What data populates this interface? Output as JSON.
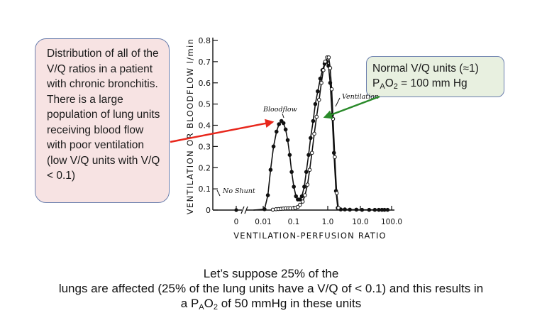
{
  "callout_left": {
    "text": "Distribution of all of the V/Q ratios in a patient with chronic bronchitis. There is a large population of lung units receiving blood flow with poor ventilation (low V/Q units with V/Q < 0.1)"
  },
  "callout_right": {
    "line1": "Normal V/Q  units (≈1)",
    "line2_pre": "P",
    "line2_sub1": "A",
    "line2_mid": "O",
    "line2_sub2": "2",
    "line2_post": " = 100 mm Hg"
  },
  "caption": {
    "line1": "Let’s suppose 25% of the",
    "line2": "lungs are affected (25% of the lung units have a V/Q of <  0.1) and this results in",
    "line3_pre": "a P",
    "line3_sub1": "A",
    "line3_mid": "O",
    "line3_sub2": "2",
    "line3_post": " of 50 mmHg in these units"
  },
  "colors": {
    "red_arrow": "#e8271c",
    "green_arrow": "#2a8a2a"
  },
  "chart_data": {
    "type": "line",
    "title": "",
    "xlabel": "VENTILATION-PERFUSION RATIO",
    "ylabel": "VENTILATION OR BLOODFLOW  l/min",
    "xscale": "log",
    "xlim": [
      0.01,
      100
    ],
    "ylim": [
      0,
      0.8
    ],
    "x_tick_labels": [
      "0",
      "0.01",
      "0.1",
      "1.0",
      "10.0",
      "100.0"
    ],
    "y_tick_labels": [
      "0",
      "0.1",
      "0.2",
      "0.3",
      "0.4",
      "0.5",
      "0.6",
      "0.7",
      "0.8"
    ],
    "annotations": {
      "no_shunt": "No Shunt",
      "bloodflow": "Bloodflow",
      "ventilation": "Ventilation"
    },
    "series": [
      {
        "name": "Bloodflow",
        "marker": "filled",
        "points": [
          [
            0.005,
            0
          ],
          [
            0.011,
            0.004
          ],
          [
            0.014,
            0.07
          ],
          [
            0.017,
            0.19
          ],
          [
            0.021,
            0.3
          ],
          [
            0.026,
            0.37
          ],
          [
            0.031,
            0.405
          ],
          [
            0.037,
            0.42
          ],
          [
            0.043,
            0.41
          ],
          [
            0.05,
            0.38
          ],
          [
            0.058,
            0.33
          ],
          [
            0.067,
            0.26
          ],
          [
            0.077,
            0.18
          ],
          [
            0.09,
            0.11
          ],
          [
            0.105,
            0.065
          ],
          [
            0.12,
            0.05
          ],
          [
            0.14,
            0.05
          ],
          [
            0.16,
            0.065
          ],
          [
            0.19,
            0.11
          ],
          [
            0.22,
            0.18
          ],
          [
            0.26,
            0.26
          ],
          [
            0.3,
            0.34
          ],
          [
            0.36,
            0.42
          ],
          [
            0.42,
            0.5
          ],
          [
            0.5,
            0.56
          ],
          [
            0.6,
            0.62
          ],
          [
            0.7,
            0.66
          ],
          [
            0.82,
            0.69
          ],
          [
            0.95,
            0.7
          ],
          [
            1.08,
            0.68
          ],
          [
            1.22,
            0.6
          ],
          [
            1.4,
            0.45
          ],
          [
            1.6,
            0.27
          ],
          [
            1.85,
            0.09
          ],
          [
            2.1,
            0.01
          ],
          [
            2.6,
            0.003
          ],
          [
            3.5,
            0.003
          ],
          [
            5,
            0.002
          ],
          [
            8,
            0.002
          ],
          [
            12,
            0.001
          ],
          [
            20,
            0.001
          ],
          [
            30,
            0.001
          ],
          [
            40,
            0.001
          ],
          [
            50,
            0.001
          ],
          [
            60,
            0.001
          ],
          [
            75,
            0.001
          ]
        ]
      },
      {
        "name": "Ventilation",
        "marker": "open",
        "points": [
          [
            0.02,
            0.002
          ],
          [
            0.025,
            0.004
          ],
          [
            0.03,
            0.005
          ],
          [
            0.036,
            0.006
          ],
          [
            0.042,
            0.007
          ],
          [
            0.05,
            0.008
          ],
          [
            0.06,
            0.008
          ],
          [
            0.07,
            0.008
          ],
          [
            0.085,
            0.008
          ],
          [
            0.1,
            0.01
          ],
          [
            0.12,
            0.015
          ],
          [
            0.14,
            0.025
          ],
          [
            0.17,
            0.04
          ],
          [
            0.2,
            0.07
          ],
          [
            0.24,
            0.12
          ],
          [
            0.28,
            0.19
          ],
          [
            0.33,
            0.27
          ],
          [
            0.39,
            0.36
          ],
          [
            0.46,
            0.44
          ],
          [
            0.55,
            0.52
          ],
          [
            0.65,
            0.6
          ],
          [
            0.75,
            0.66
          ],
          [
            0.86,
            0.7
          ],
          [
            0.98,
            0.72
          ],
          [
            1.1,
            0.72
          ],
          [
            1.22,
            0.67
          ],
          [
            1.36,
            0.57
          ],
          [
            1.5,
            0.43
          ],
          [
            1.7,
            0.25
          ],
          [
            1.95,
            0.08
          ],
          [
            2.2,
            0.01
          ]
        ]
      }
    ]
  }
}
